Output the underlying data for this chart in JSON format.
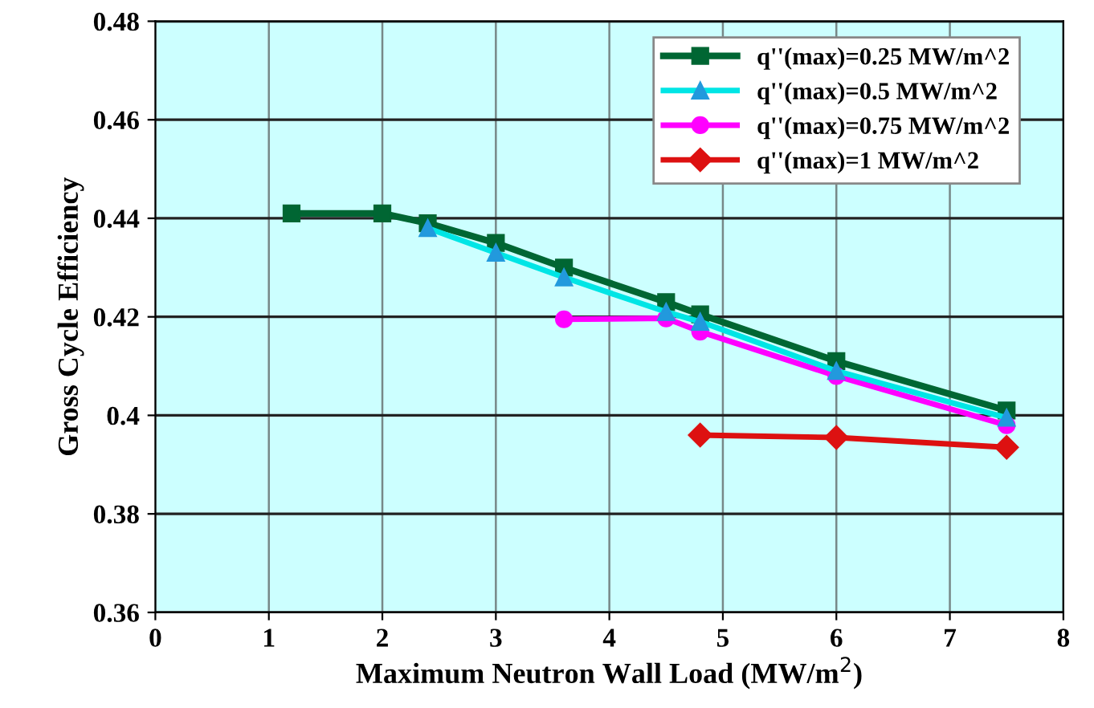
{
  "chart_data": {
    "type": "line",
    "xlabel": "Maximum Neutron Wall Load (MW/m$^{2}$)",
    "ylabel": "Gross Cycle Efficiency",
    "xlim": [
      0,
      8
    ],
    "xticks": [
      0,
      1,
      2,
      3,
      4,
      5,
      6,
      7,
      8
    ],
    "ylim": [
      0.36,
      0.48
    ],
    "yticks": [
      {
        "value": 0.36,
        "label": "0.36"
      },
      {
        "value": 0.38,
        "label": "0.38"
      },
      {
        "value": 0.4,
        "label": "0.4"
      },
      {
        "value": 0.42,
        "label": "0.42"
      },
      {
        "value": 0.44,
        "label": "0.44"
      },
      {
        "value": 0.46,
        "label": "0.46"
      },
      {
        "value": 0.48,
        "label": "0.48"
      }
    ],
    "grid": true,
    "legend": "top right",
    "line_style": "solid",
    "series": [
      {
        "name": "q''(max)=0.25 MW/m^2",
        "color": "#006633",
        "marker": "square",
        "x": [
          1.2,
          2,
          2.4,
          3,
          3.6,
          4.5,
          4.8,
          6,
          7.5
        ],
        "values": [
          0.441,
          0.441,
          0.439,
          0.435,
          0.43,
          0.423,
          0.4205,
          0.411,
          0.401
        ]
      },
      {
        "name": "q''(max)=0.5 MW/m^2",
        "color": "#00e5e5",
        "marker": "triangle",
        "x": [
          2.4,
          3,
          3.6,
          4.5,
          4.8,
          6,
          7.5
        ],
        "values": [
          0.438,
          0.433,
          0.428,
          0.421,
          0.419,
          0.409,
          0.3995
        ]
      },
      {
        "name": "q''(max)=0.75 MW/m^2",
        "color": "#ff00ff",
        "marker": "circle",
        "x": [
          3.6,
          4.5,
          4.8,
          6,
          7.5
        ],
        "values": [
          0.4195,
          0.4197,
          0.417,
          0.408,
          0.398
        ]
      },
      {
        "name": "q''(max)=1 MW/m^2",
        "color": "#dd1111",
        "marker": "diamond",
        "x": [
          4.8,
          6,
          7.5
        ],
        "values": [
          0.396,
          0.3955,
          0.3935
        ]
      }
    ]
  }
}
